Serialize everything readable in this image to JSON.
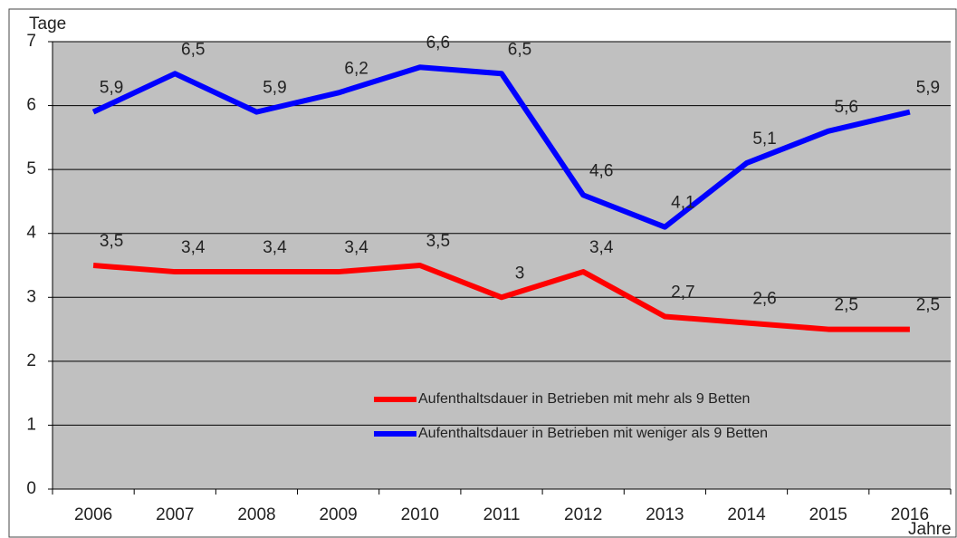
{
  "chart_data": {
    "type": "line",
    "y_axis_label": "Tage",
    "x_axis_label": "Jahre",
    "categories": [
      "2006",
      "2007",
      "2008",
      "2009",
      "2010",
      "2011",
      "2012",
      "2013",
      "2014",
      "2015",
      "2016"
    ],
    "series": [
      {
        "name": "Aufenthaltsdauer in Betrieben mit mehr als 9 Betten",
        "color": "#ff0000",
        "values": [
          3.5,
          3.4,
          3.4,
          3.4,
          3.5,
          3,
          3.4,
          2.7,
          2.6,
          2.5,
          2.5
        ],
        "value_labels": [
          "3,5",
          "3,4",
          "3,4",
          "3,4",
          "3,5",
          "3",
          "3,4",
          "2,7",
          "2,6",
          "2,5",
          "2,5"
        ]
      },
      {
        "name": "Aufenthaltsdauer in Betrieben mit weniger als 9 Betten",
        "color": "#0000ff",
        "values": [
          5.9,
          6.5,
          5.9,
          6.2,
          6.6,
          6.5,
          4.6,
          4.1,
          5.1,
          5.6,
          5.9
        ],
        "value_labels": [
          "5,9",
          "6,5",
          "5,9",
          "6,2",
          "6,6",
          "6,5",
          "4,6",
          "4,1",
          "5,1",
          "5,6",
          "5,9"
        ]
      }
    ],
    "ylim": [
      0,
      7
    ],
    "yticks": [
      0,
      1,
      2,
      3,
      4,
      5,
      6,
      7
    ],
    "grid": true,
    "plot_background": "#c0c0c0"
  }
}
